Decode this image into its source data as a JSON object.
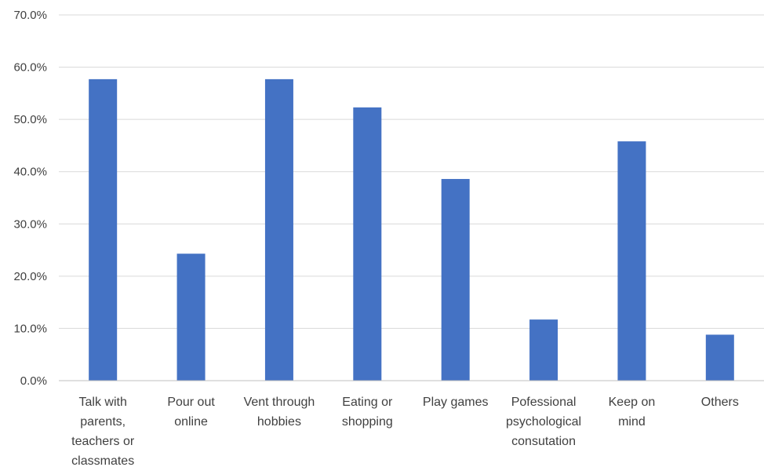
{
  "chart_data": {
    "type": "bar",
    "title": "",
    "xlabel": "",
    "ylabel": "",
    "categories": [
      [
        "Talk with",
        "parents,",
        "teachers or",
        "classmates"
      ],
      [
        "Pour out",
        "online"
      ],
      [
        "Vent through",
        "hobbies"
      ],
      [
        "Eating or",
        "shopping"
      ],
      [
        "Play games"
      ],
      [
        "Pofessional",
        "psychological",
        "consutation"
      ],
      [
        "Keep on",
        "mind"
      ],
      [
        "Others"
      ]
    ],
    "values": [
      57.7,
      24.3,
      57.7,
      52.3,
      38.6,
      11.7,
      45.8,
      8.8
    ],
    "ylim": [
      0,
      70
    ],
    "yticks": [
      "0.0%",
      "10.0%",
      "20.0%",
      "30.0%",
      "40.0%",
      "50.0%",
      "60.0%",
      "70.0%"
    ],
    "grid": true,
    "legend": "none",
    "bar_color": "#4472C4"
  }
}
